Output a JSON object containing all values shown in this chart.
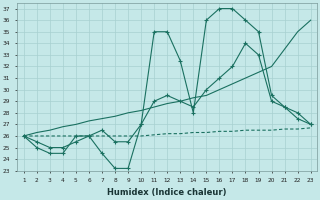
{
  "xlabel": "Humidex (Indice chaleur)",
  "bg_color": "#c5e8e8",
  "grid_color": "#a8d0d0",
  "line_color": "#1a7060",
  "x_ticks": [
    1,
    2,
    3,
    4,
    5,
    6,
    7,
    8,
    9,
    10,
    11,
    12,
    13,
    14,
    15,
    16,
    17,
    18,
    19,
    20,
    21,
    22,
    23
  ],
  "ylim": [
    23,
    37.5
  ],
  "xlim": [
    0.5,
    23.5
  ],
  "y_ticks": [
    23,
    24,
    25,
    26,
    27,
    28,
    29,
    30,
    31,
    32,
    33,
    34,
    35,
    36,
    37
  ],
  "line1_x": [
    1,
    2,
    3,
    4,
    5,
    6,
    7,
    8,
    9,
    10,
    11,
    12,
    13,
    14,
    15,
    16,
    17,
    18,
    19,
    20,
    21,
    22,
    23
  ],
  "line1_y": [
    26,
    25,
    24.5,
    24.5,
    26,
    26,
    24.5,
    23.2,
    23.2,
    27,
    35,
    35,
    32.5,
    28,
    36,
    37,
    37,
    36,
    35,
    29.5,
    28.5,
    27.5,
    27
  ],
  "line2_x": [
    1,
    2,
    3,
    4,
    5,
    6,
    7,
    8,
    9,
    10,
    11,
    12,
    13,
    14,
    15,
    16,
    17,
    18,
    19,
    20,
    21,
    22,
    23
  ],
  "line2_y": [
    26,
    25.5,
    25,
    25,
    25.5,
    26,
    26.5,
    25.5,
    25.5,
    27,
    29,
    29.5,
    29,
    28.5,
    30,
    31,
    32,
    34,
    33,
    29,
    28.5,
    28,
    27
  ],
  "line3_x": [
    1,
    2,
    3,
    4,
    5,
    6,
    7,
    8,
    9,
    10,
    11,
    12,
    13,
    14,
    15,
    16,
    17,
    18,
    19,
    20,
    21,
    22,
    23
  ],
  "line3_y": [
    26,
    26.3,
    26.5,
    26.8,
    27.0,
    27.3,
    27.5,
    27.7,
    28.0,
    28.2,
    28.5,
    28.8,
    29.0,
    29.3,
    29.5,
    30.0,
    30.5,
    31.0,
    31.5,
    32.0,
    33.5,
    35.0,
    36.0
  ],
  "line4_x": [
    1,
    2,
    3,
    4,
    5,
    6,
    7,
    8,
    9,
    10,
    11,
    12,
    13,
    14,
    15,
    16,
    17,
    18,
    19,
    20,
    21,
    22,
    23
  ],
  "line4_y": [
    26,
    26,
    26,
    26,
    26,
    26,
    26,
    26,
    26,
    26,
    26.1,
    26.2,
    26.2,
    26.3,
    26.3,
    26.4,
    26.4,
    26.5,
    26.5,
    26.5,
    26.6,
    26.6,
    26.7
  ]
}
